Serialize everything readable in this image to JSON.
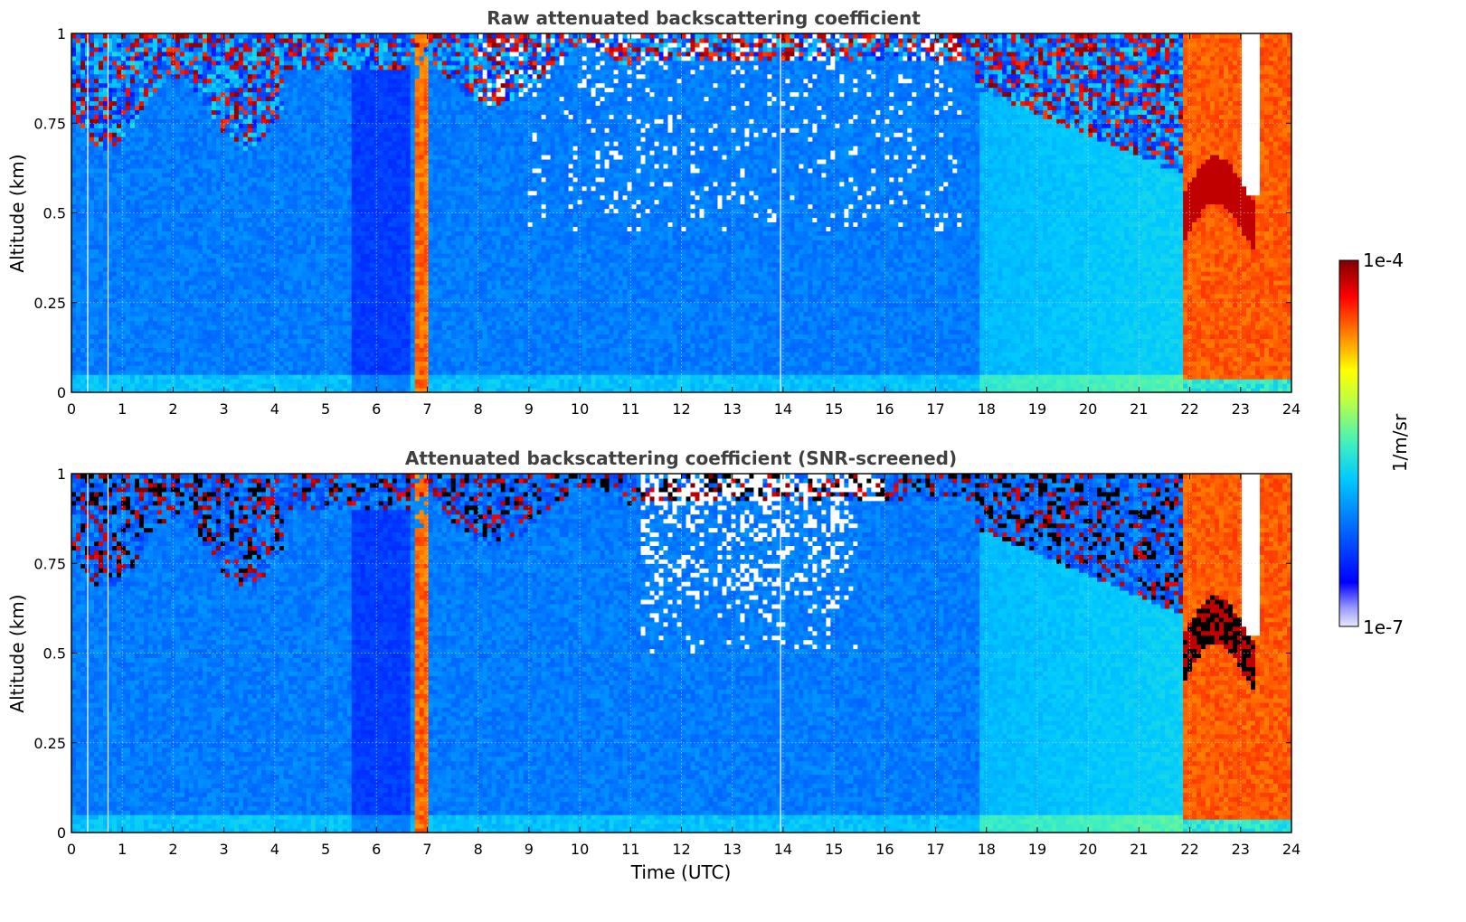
{
  "chart_data": [
    {
      "type": "heatmap",
      "title": "Raw attenuated backscattering coefficient",
      "xlabel": "",
      "ylabel": "Altitude (km)",
      "xlim": [
        0,
        24
      ],
      "ylim": [
        0,
        1
      ],
      "x_ticks": [
        0,
        1,
        2,
        3,
        4,
        5,
        6,
        7,
        8,
        9,
        10,
        11,
        12,
        13,
        14,
        15,
        16,
        17,
        18,
        19,
        20,
        21,
        22,
        23,
        24
      ],
      "x_tick_labels": [
        "0",
        "1",
        "2",
        "3",
        "4",
        "5",
        "6",
        "7",
        "8",
        "9",
        "10",
        "11",
        "12",
        "13",
        "14",
        "15",
        "16",
        "17",
        "18",
        "19",
        "20",
        "21",
        "22",
        "23",
        "24"
      ],
      "y_ticks": [
        0,
        0.25,
        0.5,
        0.75,
        1
      ],
      "y_tick_labels": [
        "0",
        "0.25",
        "0.5",
        "0.75",
        "1"
      ],
      "grid": true,
      "screened": false
    },
    {
      "type": "heatmap",
      "title": "Attenuated backscattering coefficient (SNR-screened)",
      "xlabel": "Time (UTC)",
      "ylabel": "Altitude (km)",
      "xlim": [
        0,
        24
      ],
      "ylim": [
        0,
        1
      ],
      "x_ticks": [
        0,
        1,
        2,
        3,
        4,
        5,
        6,
        7,
        8,
        9,
        10,
        11,
        12,
        13,
        14,
        15,
        16,
        17,
        18,
        19,
        20,
        21,
        22,
        23,
        24
      ],
      "x_tick_labels": [
        "0",
        "1",
        "2",
        "3",
        "4",
        "5",
        "6",
        "7",
        "8",
        "9",
        "10",
        "11",
        "12",
        "13",
        "14",
        "15",
        "16",
        "17",
        "18",
        "19",
        "20",
        "21",
        "22",
        "23",
        "24"
      ],
      "y_ticks": [
        0,
        0.25,
        0.5,
        0.75,
        1
      ],
      "y_tick_labels": [
        "0",
        "0.25",
        "0.5",
        "0.75",
        "1"
      ],
      "grid": true,
      "screened": true
    }
  ],
  "colorbar": {
    "label": "1/m/sr",
    "max_label": "1e-4",
    "min_label": "1e-7",
    "scale": "log",
    "range": [
      1e-07,
      0.0001
    ]
  },
  "features": {
    "instrument_gaps_utc": [
      0.32,
      0.72,
      13.95
    ],
    "dense_aerosol_column_utc": [
      6.78,
      6.98
    ],
    "dense_layer_start_utc": 21.9,
    "thick_layer_end_utc": 24
  }
}
